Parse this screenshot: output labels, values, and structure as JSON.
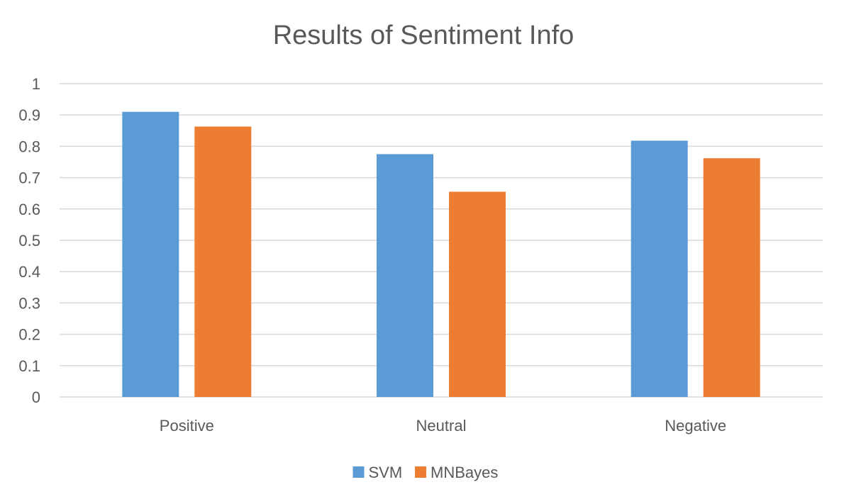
{
  "chart_data": {
    "type": "bar",
    "title": "Results of Sentiment Info",
    "xlabel": "",
    "ylabel": "",
    "categories": [
      "Positive",
      "Neutral",
      "Negative"
    ],
    "series": [
      {
        "name": "SVM",
        "color": "#5b9bd5",
        "values": [
          0.91,
          0.775,
          0.818
        ]
      },
      {
        "name": "MNBayes",
        "color": "#ed7d31",
        "values": [
          0.863,
          0.655,
          0.762
        ]
      }
    ],
    "ylim": [
      0,
      1
    ],
    "yticks": [
      {
        "value": 0,
        "label": "0"
      },
      {
        "value": 0.1,
        "label": "0.1"
      },
      {
        "value": 0.2,
        "label": "0.2"
      },
      {
        "value": 0.3,
        "label": "0.3"
      },
      {
        "value": 0.4,
        "label": "0.4"
      },
      {
        "value": 0.5,
        "label": "0.5"
      },
      {
        "value": 0.6,
        "label": "0.6"
      },
      {
        "value": 0.7,
        "label": "0.7"
      },
      {
        "value": 0.8,
        "label": "0.8"
      },
      {
        "value": 0.9,
        "label": "0.9"
      },
      {
        "value": 1,
        "label": "1"
      }
    ],
    "grid": true,
    "legend": "bottom"
  }
}
